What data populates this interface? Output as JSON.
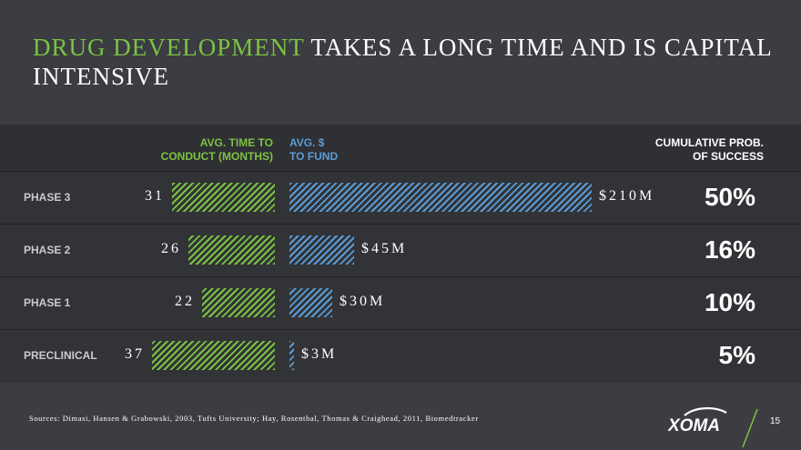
{
  "title": {
    "accent": "DRUG DEVELOPMENT",
    "rest": " TAKES A LONG TIME AND IS CAPITAL INTENSIVE"
  },
  "headers": {
    "time_line1": "AVG. TIME TO",
    "time_line2": "CONDUCT (MONTHS)",
    "fund_line1": "AVG. $",
    "fund_line2": "TO FUND",
    "prob_line1": "CUMULATIVE PROB.",
    "prob_line2": "OF SUCCESS"
  },
  "colors": {
    "time_bar": "#7cc242",
    "fund_bar": "#5b9bd5",
    "accent": "#7cc242"
  },
  "chart_data": {
    "type": "bar",
    "categories": [
      "PHASE 3",
      "PHASE 2",
      "PHASE 1",
      "PRECLINICAL"
    ],
    "series": [
      {
        "name": "AVG. TIME TO CONDUCT (MONTHS)",
        "values": [
          31,
          26,
          22,
          37
        ],
        "labels": [
          "31",
          "26",
          "22",
          "37"
        ]
      },
      {
        "name": "AVG. $ TO FUND",
        "values": [
          210,
          45,
          30,
          3
        ],
        "labels": [
          "$210M",
          "$45M",
          "$30M",
          "$3M"
        ]
      }
    ],
    "probability_of_success": [
      "50%",
      "16%",
      "10%",
      "5%"
    ]
  },
  "footer": {
    "sources": "Sources: Dimasi, Hansen & Grabowski, 2003, Tufts University; Hay, Rosenthal, Thomas & Craighead, 2011, Biomedtracker",
    "logo_text": "XOMA",
    "page_number": "15"
  }
}
